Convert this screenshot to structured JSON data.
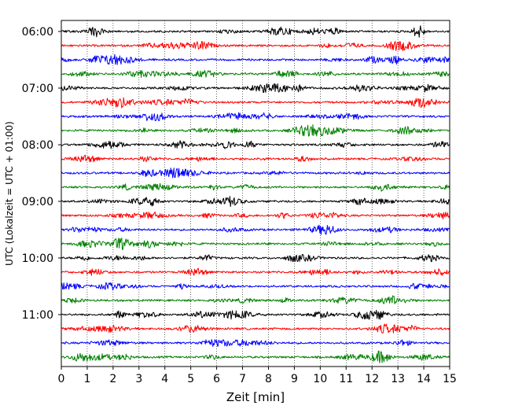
{
  "chart_data": {
    "type": "line",
    "subtype": "seismogram-helicorder",
    "xlabel": "Zeit  [min]",
    "ylabel": "UTC (Lokalzeit = UTC + 01:00)",
    "xlim": [
      0,
      15
    ],
    "x_ticks": [
      0,
      1,
      2,
      3,
      4,
      5,
      6,
      7,
      8,
      9,
      10,
      11,
      12,
      13,
      14,
      15
    ],
    "x_tick_labels": [
      "0",
      "1",
      "2",
      "3",
      "4",
      "5",
      "6",
      "7",
      "8",
      "9",
      "10",
      "11",
      "12",
      "13",
      "14",
      "15"
    ],
    "y_tick_labels": [
      "06:00",
      "07:00",
      "08:00",
      "09:00",
      "10:00",
      "11:00"
    ],
    "trace_minutes": 15,
    "trace_start_times": [
      "06:00",
      "06:15",
      "06:30",
      "06:45",
      "07:00",
      "07:15",
      "07:30",
      "07:45",
      "08:00",
      "08:15",
      "08:30",
      "08:45",
      "09:00",
      "09:15",
      "09:30",
      "09:45",
      "10:00",
      "10:15",
      "10:30",
      "10:45",
      "11:00",
      "11:15",
      "11:30",
      "11:45"
    ],
    "trace_colors": [
      "#000000",
      "#ff0000",
      "#0000ff",
      "#008000"
    ],
    "vertical_grid": "dotted",
    "signal": "continuous low-amplitude seismic noise with small bursts; no large events"
  }
}
